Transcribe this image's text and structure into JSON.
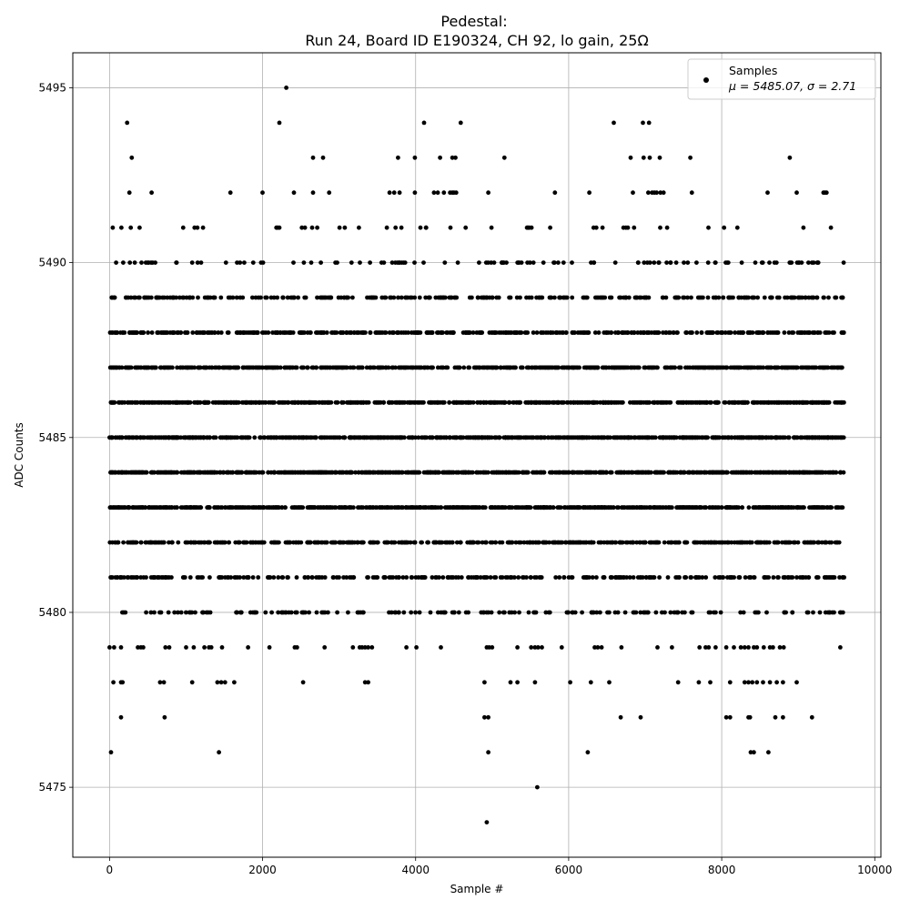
{
  "chart_data": {
    "type": "scatter",
    "title_line1": "Pedestal:",
    "title_line2": "Run 24, Board ID E190324, CH 92, lo gain, 25Ω",
    "xlabel": "Sample #",
    "ylabel": "ADC Counts",
    "xlim": [
      -480,
      10080
    ],
    "ylim": [
      5473,
      5496
    ],
    "xticks": [
      0,
      2000,
      4000,
      6000,
      8000,
      10000
    ],
    "yticks": [
      5475,
      5480,
      5485,
      5490,
      5495
    ],
    "grid": true,
    "legend_position": "top-right",
    "marker_color": "#000000",
    "n_samples": 9600,
    "mean": 5485.07,
    "sigma": 2.71,
    "series": [
      {
        "name": "Samples",
        "label_line2": "μ = 5485.07, σ = 2.71",
        "levels": [
          {
            "y": 5474,
            "x": [
              4930
            ]
          },
          {
            "y": 5475,
            "x": [
              5590
            ]
          },
          {
            "y": 5476,
            "x": [
              20,
              1430,
              4950,
              6250,
              8380,
              8420,
              8610
            ]
          },
          {
            "y": 5477,
            "x": [
              150,
              720,
              4900,
              4950,
              6680,
              6940,
              8060,
              8110,
              8350,
              8370,
              8700,
              8800,
              9180
            ]
          },
          {
            "y": 5478,
            "x": [
              50,
              150,
              170,
              660,
              710,
              1080,
              1410,
              1460,
              1510,
              1630,
              2530,
              3340,
              3380,
              4900,
              5240,
              5330,
              5560,
              6020,
              6290,
              6530,
              7430,
              7700,
              7850,
              8110,
              8300,
              8350,
              8400,
              8460,
              8540,
              8630,
              8720,
              8800,
              8980
            ]
          },
          {
            "y": 5479,
            "x": [
              0,
              60,
              150,
              370,
              410,
              440,
              730,
              780,
              1000,
              1100,
              1240,
              1300,
              1330,
              1470,
              1810,
              2090,
              2420,
              2450,
              2810,
              3180,
              3270,
              3300,
              3340,
              3380,
              3430,
              3880,
              4010,
              4330,
              4930,
              4960,
              5000,
              5330,
              5510,
              5560,
              5600,
              5650,
              5910,
              6340,
              6380,
              6430,
              6690,
              7160,
              7350,
              7710,
              7790,
              7830,
              7920,
              8060,
              8160,
              8250,
              8300,
              8350,
              8420,
              8460,
              8550,
              8630,
              8670,
              8760,
              8810,
              9550
            ]
          }
        ],
        "density_profile": [
          {
            "y": 5480,
            "fraction": 0.03
          },
          {
            "y": 5481,
            "fraction": 0.055
          },
          {
            "y": 5482,
            "fraction": 0.09
          },
          {
            "y": 5483,
            "fraction": 0.13
          },
          {
            "y": 5484,
            "fraction": 0.145
          },
          {
            "y": 5485,
            "fraction": 0.145
          },
          {
            "y": 5486,
            "fraction": 0.13
          },
          {
            "y": 5487,
            "fraction": 0.11
          },
          {
            "y": 5488,
            "fraction": 0.08
          },
          {
            "y": 5489,
            "fraction": 0.05
          },
          {
            "y": 5490,
            "fraction": 0.02
          },
          {
            "y": 5491,
            "fraction": 0.008
          }
        ],
        "upper_outliers": [
          {
            "y": 5492,
            "x": [
              260,
              550,
              1580,
              2000,
              2410,
              2660,
              2870,
              3660,
              3720,
              3790,
              3990,
              4240,
              4290,
              4370,
              4450,
              4480,
              4500,
              4530,
              4950,
              5820,
              6270,
              6840,
              7040,
              7090,
              7120,
              7150,
              7200,
              7240,
              7610,
              8600,
              8980,
              9330,
              9350,
              9370
            ]
          },
          {
            "y": 5493,
            "x": [
              290,
              2660,
              2790,
              3770,
              3990,
              4320,
              4480,
              4520,
              5160,
              6810,
              6980,
              7060,
              7190,
              7590,
              8890
            ]
          },
          {
            "y": 5494,
            "x": [
              230,
              2220,
              4110,
              4590,
              6590,
              6970,
              7050
            ]
          },
          {
            "y": 5495,
            "x": [
              2310
            ]
          }
        ]
      }
    ]
  }
}
